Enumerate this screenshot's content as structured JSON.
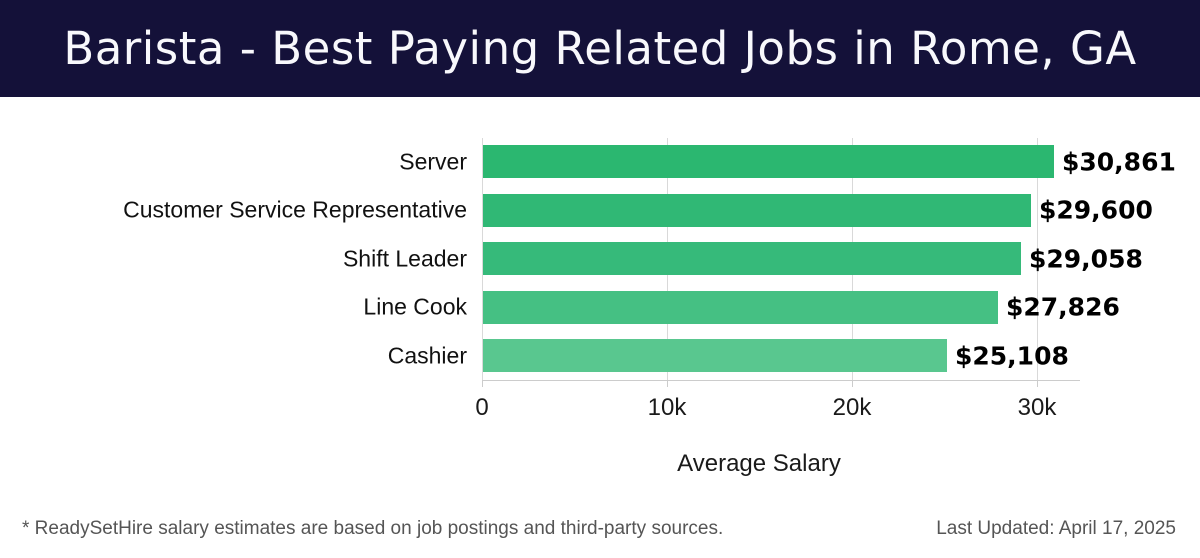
{
  "header": {
    "title": "Barista - Best Paying Related Jobs in Rome, GA",
    "background_color": "#141139",
    "text_color": "#f8f8fc"
  },
  "chart_data": {
    "type": "bar",
    "orientation": "horizontal",
    "title": "Barista - Best Paying Related Jobs in Rome, GA",
    "categories": [
      "Server",
      "Customer Service Representative",
      "Shift Leader",
      "Line Cook",
      "Cashier"
    ],
    "values": [
      30861,
      29600,
      29058,
      27826,
      25108
    ],
    "value_labels": [
      "$30,861",
      "$29,600",
      "$29,058",
      "$27,826",
      "$25,108"
    ],
    "bar_colors": [
      "#2bb770",
      "#30b875",
      "#36ba7a",
      "#45c083",
      "#59c78f"
    ],
    "xlabel": "Average Salary",
    "ylabel": "",
    "x_ticks": [
      {
        "value": 0,
        "label": "0"
      },
      {
        "value": 10000,
        "label": "10k"
      },
      {
        "value": 20000,
        "label": "20k"
      },
      {
        "value": 30000,
        "label": "30k"
      }
    ],
    "xlim": [
      0,
      32300
    ],
    "grid": "vertical",
    "gridline_color": "#d9d9d9"
  },
  "footer": {
    "left_note": "* ReadySetHire salary estimates are based on job postings and third-party sources.",
    "right_note": "Last Updated: April 17, 2025"
  }
}
